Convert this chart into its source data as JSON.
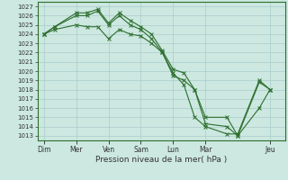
{
  "background_color": "#cce8e0",
  "grid_color": "#aacccc",
  "line_color": "#2d6e2d",
  "title": "Pression niveau de la mer( hPa )",
  "ylim": [
    1012.5,
    1027.5
  ],
  "yticks": [
    1013,
    1014,
    1015,
    1016,
    1017,
    1018,
    1019,
    1020,
    1021,
    1022,
    1023,
    1024,
    1025,
    1026,
    1027
  ],
  "xtick_labels": [
    "Dim",
    "Mer",
    "Ven",
    "Sam",
    "Lun",
    "Mar",
    "Jeu"
  ],
  "xtick_positions": [
    0,
    1.5,
    3.0,
    4.5,
    6.0,
    7.5,
    10.5
  ],
  "xlim": [
    -0.3,
    11.2
  ],
  "series1_x": [
    0,
    0.5,
    1.5,
    2.0,
    2.5,
    3.0,
    3.5,
    4.0,
    4.5,
    5.0,
    5.5,
    6.0,
    6.5,
    7.0,
    7.5,
    8.5,
    9.0,
    10.0,
    10.5
  ],
  "series1_y": [
    1024.0,
    1024.8,
    1026.3,
    1026.3,
    1026.7,
    1025.2,
    1026.3,
    1025.5,
    1024.8,
    1024.0,
    1022.2,
    1020.2,
    1019.8,
    1018.0,
    1015.0,
    1015.0,
    1013.0,
    1018.8,
    1018.0
  ],
  "series2_x": [
    0,
    0.5,
    1.5,
    2.0,
    2.5,
    3.0,
    3.5,
    4.0,
    4.5,
    5.0,
    5.5,
    6.0,
    6.5,
    7.0,
    7.5,
    8.5,
    9.0,
    10.0,
    10.5
  ],
  "series2_y": [
    1024.0,
    1024.8,
    1026.0,
    1026.0,
    1026.5,
    1025.0,
    1026.0,
    1025.0,
    1024.5,
    1023.5,
    1022.0,
    1019.5,
    1019.0,
    1018.0,
    1014.3,
    1014.0,
    1013.0,
    1016.0,
    1018.0
  ],
  "series3_x": [
    0,
    0.5,
    1.5,
    2.0,
    2.5,
    3.0,
    3.5,
    4.0,
    4.5,
    5.0,
    5.5,
    6.0,
    6.5,
    7.0,
    7.5,
    8.5,
    9.0,
    10.0,
    10.5
  ],
  "series3_y": [
    1024.0,
    1024.5,
    1025.0,
    1024.8,
    1024.8,
    1023.5,
    1024.5,
    1024.0,
    1023.8,
    1023.0,
    1022.0,
    1019.8,
    1018.5,
    1015.0,
    1014.0,
    1013.2,
    1013.2,
    1019.0,
    1018.0
  ]
}
